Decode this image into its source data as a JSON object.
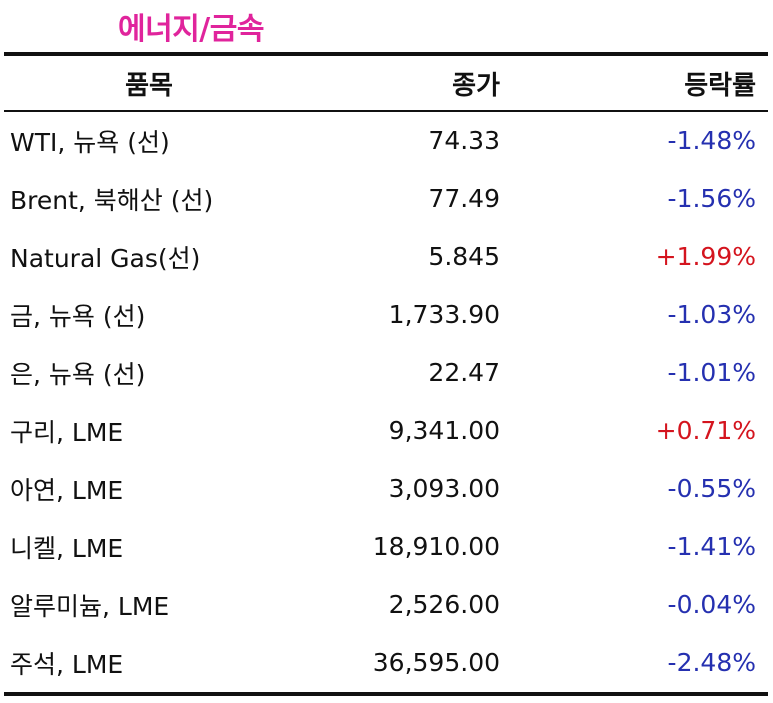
{
  "title": "에너지/금속",
  "colors": {
    "title": "#e0249c",
    "negative": "#2530b0",
    "positive": "#d4141e"
  },
  "table": {
    "headers": {
      "name": "품목",
      "price": "종가",
      "change": "등락률"
    },
    "rows": [
      {
        "name": "WTI, 뉴욕 (선)",
        "price": "74.33",
        "change": "-1.48%",
        "direction": "neg"
      },
      {
        "name": "Brent, 북해산 (선)",
        "price": "77.49",
        "change": "-1.56%",
        "direction": "neg"
      },
      {
        "name": "Natural Gas(선)",
        "price": "5.845",
        "change": "+1.99%",
        "direction": "pos"
      },
      {
        "name": "금, 뉴욕  (선)",
        "price": "1,733.90",
        "change": "-1.03%",
        "direction": "neg"
      },
      {
        "name": "은, 뉴욕  (선)",
        "price": "22.47",
        "change": "-1.01%",
        "direction": "neg"
      },
      {
        "name": "구리, LME",
        "price": "9,341.00",
        "change": "+0.71%",
        "direction": "pos"
      },
      {
        "name": "아연, LME",
        "price": "3,093.00",
        "change": "-0.55%",
        "direction": "neg"
      },
      {
        "name": "니켈, LME",
        "price": "18,910.00",
        "change": "-1.41%",
        "direction": "neg"
      },
      {
        "name": "알루미늄, LME",
        "price": "2,526.00",
        "change": "-0.04%",
        "direction": "neg"
      },
      {
        "name": "주석, LME",
        "price": "36,595.00",
        "change": "-2.48%",
        "direction": "neg"
      }
    ]
  }
}
